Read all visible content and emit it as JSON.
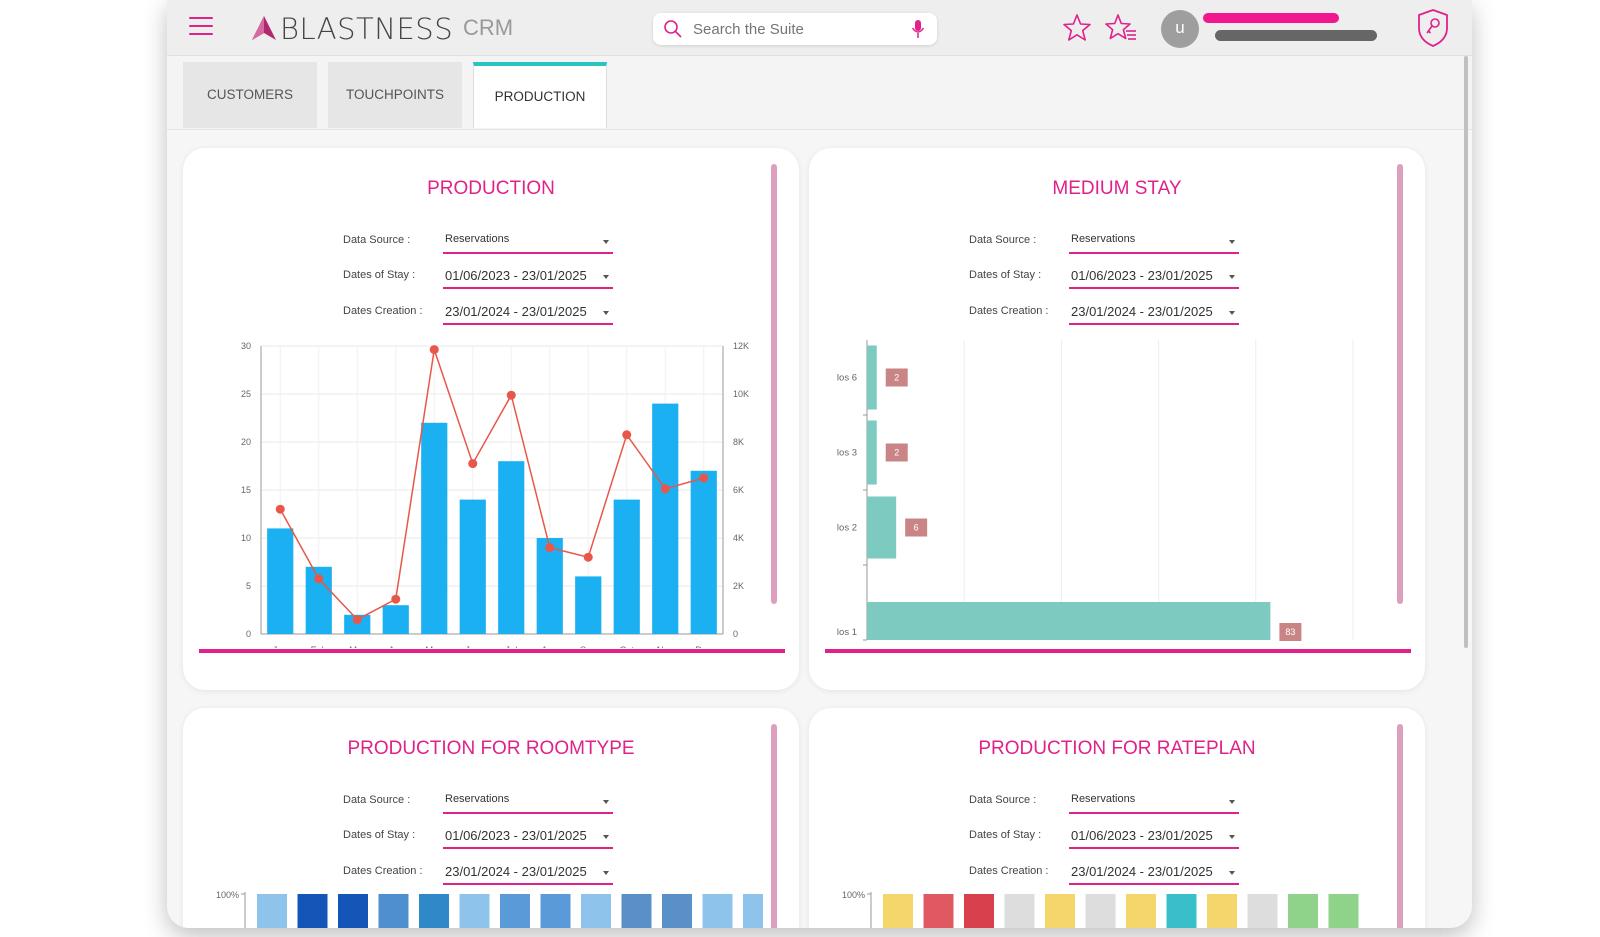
{
  "app": {
    "brand": "BLASTNESS",
    "module": "CRM",
    "search_placeholder": "Search the Suite",
    "avatar_initial": "u"
  },
  "tabs": [
    {
      "label": "CUSTOMERS"
    },
    {
      "label": "TOUCHPOINTS"
    },
    {
      "label": "PRODUCTION"
    }
  ],
  "filters": {
    "data_source_label": "Data Source :",
    "dates_stay_label": "Dates of Stay :",
    "dates_creation_label": "Dates Creation :",
    "data_source": "Reservations",
    "dates_stay": "01/06/2023 - 23/01/2025",
    "dates_creation": "23/01/2024 - 23/01/2025"
  },
  "cards": {
    "production": {
      "title": "PRODUCTION"
    },
    "medium_stay": {
      "title": "MEDIUM STAY"
    },
    "roomtype": {
      "title": "PRODUCTION FOR ROOMTYPE",
      "y_top": "100%"
    },
    "rateplan": {
      "title": "PRODUCTION FOR RATEPLAN",
      "y_top": "100%"
    }
  },
  "colors": {
    "accent": "#e0218a",
    "tab_active": "#27c4c1",
    "bar": "#1ab0f2",
    "line": "#e8574a",
    "stay_bar": "#7ccac0",
    "stay_label": "#c98585"
  },
  "chart_data": [
    {
      "type": "bar",
      "title": "PRODUCTION",
      "categories": [
        "Jan",
        "Feb",
        "Mar",
        "Apr",
        "May",
        "Jun",
        "Jul",
        "Aug",
        "Sep",
        "Oct",
        "Nov",
        "Dec"
      ],
      "series": [
        {
          "axis": "left",
          "type": "bar",
          "values": [
            11,
            7,
            2,
            3,
            22,
            14,
            18,
            10,
            6,
            14,
            24,
            17
          ]
        },
        {
          "axis": "right",
          "type": "line",
          "values": [
            5200,
            2300,
            600,
            1450,
            11850,
            7100,
            9950,
            3600,
            3200,
            8300,
            6050,
            6500
          ]
        }
      ],
      "ylim_left": [
        0,
        30
      ],
      "yticks_left": [
        "0",
        "5",
        "10",
        "15",
        "20",
        "25",
        "30"
      ],
      "ylim_right": [
        0,
        12000
      ],
      "yticks_right": [
        "0",
        "2K",
        "4K",
        "6K",
        "8K",
        "10K",
        "12K"
      ]
    },
    {
      "type": "bar",
      "title": "MEDIUM STAY",
      "orientation": "horizontal",
      "categories": [
        "los 6",
        "los 3",
        "los 2",
        "los 1"
      ],
      "values": [
        2,
        2,
        6,
        83
      ],
      "xlim": [
        0,
        100
      ]
    }
  ]
}
